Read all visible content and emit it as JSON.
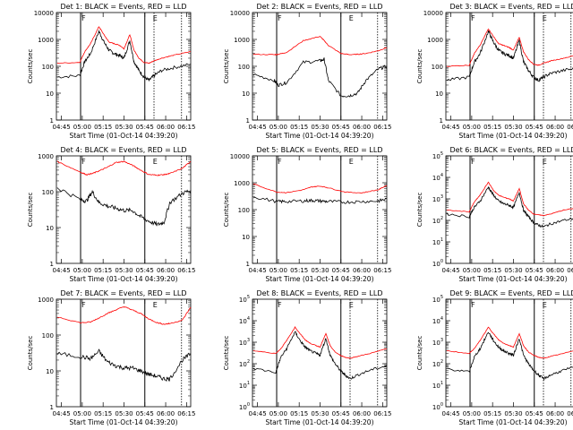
{
  "figure": {
    "xtick_labels": [
      "04:45",
      "05:00",
      "05:15",
      "05:30",
      "05:45",
      "06:00",
      "06:15"
    ],
    "xlabel": "Start Time (01-Oct-14 04:39:20)",
    "ylabel": "Counts/sec",
    "line_colors": {
      "events": "#000000",
      "lld": "#ff0000"
    }
  },
  "chart_data": [
    {
      "type": "line",
      "title": "Det 1: BLACK = Events, RED = LLD",
      "scale": "log",
      "ytick_labels": [
        "1",
        "10",
        "100",
        "1000",
        "10000"
      ],
      "ylim": [
        1,
        10000
      ],
      "markers": {
        "solid": [
          4.98,
          5.75
        ],
        "dotted": [
          5.86,
          6.19
        ],
        "letters": [
          "F",
          "E"
        ]
      },
      "x": [
        4.7,
        4.97,
        5.03,
        5.1,
        5.2,
        5.26,
        5.32,
        5.38,
        5.45,
        5.5,
        5.57,
        5.62,
        5.68,
        5.74,
        5.8,
        5.86,
        5.95,
        6.1,
        6.3
      ],
      "series": [
        {
          "name": "Events",
          "values": [
            40,
            45,
            150,
            300,
            2000,
            800,
            400,
            300,
            250,
            200,
            900,
            150,
            70,
            40,
            30,
            45,
            70,
            90,
            120
          ]
        },
        {
          "name": "LLD",
          "values": [
            130,
            140,
            350,
            700,
            3000,
            1500,
            800,
            700,
            600,
            450,
            1500,
            400,
            200,
            140,
            130,
            160,
            200,
            260,
            350
          ]
        }
      ]
    },
    {
      "type": "line",
      "title": "Det 2: BLACK = Events, RED = LLD",
      "scale": "log",
      "ytick_labels": [
        "1",
        "10",
        "100",
        "1000",
        "10000"
      ],
      "ylim": [
        1,
        10000
      ],
      "markers": {
        "solid": [
          4.98,
          5.75
        ],
        "dotted": [
          6.19
        ],
        "letters": [
          "F",
          "E"
        ]
      },
      "x": [
        4.7,
        4.95,
        5.0,
        5.1,
        5.3,
        5.5,
        5.55,
        5.6,
        5.75,
        5.85,
        5.95,
        6.05,
        6.2,
        6.3
      ],
      "series": [
        {
          "name": "Events",
          "values": [
            50,
            30,
            20,
            25,
            140,
            160,
            180,
            30,
            8,
            8,
            10,
            30,
            80,
            100
          ]
        },
        {
          "name": "LLD",
          "values": [
            280,
            270,
            280,
            330,
            900,
            1300,
            900,
            600,
            300,
            270,
            280,
            300,
            380,
            500
          ]
        }
      ]
    },
    {
      "type": "line",
      "title": "Det 3: BLACK = Events, RED = LLD",
      "scale": "log",
      "ytick_labels": [
        "1",
        "10",
        "100",
        "1000",
        "10000"
      ],
      "ylim": [
        1,
        10000
      ],
      "markers": {
        "solid": [
          4.98,
          5.75
        ],
        "dotted": [
          5.86,
          6.19
        ],
        "letters": [
          "F",
          "E"
        ]
      },
      "x": [
        4.7,
        4.97,
        5.03,
        5.1,
        5.2,
        5.26,
        5.32,
        5.38,
        5.45,
        5.5,
        5.57,
        5.62,
        5.68,
        5.74,
        5.8,
        5.86,
        5.95,
        6.1,
        6.3
      ],
      "series": [
        {
          "name": "Events",
          "values": [
            30,
            40,
            140,
            300,
            2000,
            800,
            400,
            300,
            250,
            200,
            900,
            150,
            70,
            40,
            30,
            40,
            55,
            70,
            90
          ]
        },
        {
          "name": "LLD",
          "values": [
            100,
            110,
            300,
            600,
            2500,
            1300,
            700,
            600,
            500,
            400,
            1200,
            350,
            180,
            120,
            110,
            130,
            160,
            200,
            280
          ]
        }
      ]
    },
    {
      "type": "line",
      "title": "Det 4: BLACK = Events, RED = LLD",
      "scale": "log",
      "ytick_labels": [
        "1",
        "10",
        "100",
        "1000"
      ],
      "ylim": [
        1,
        1000
      ],
      "markers": {
        "solid": [
          4.98,
          5.75
        ],
        "dotted": [
          6.19
        ],
        "letters": [
          "F",
          "E"
        ]
      },
      "x": [
        4.7,
        4.98,
        5.05,
        5.12,
        5.2,
        5.3,
        5.4,
        5.5,
        5.6,
        5.7,
        5.8,
        5.9,
        5.98,
        6.05,
        6.2,
        6.3
      ],
      "series": [
        {
          "name": "Events",
          "values": [
            130,
            60,
            55,
            100,
            50,
            40,
            35,
            30,
            30,
            20,
            15,
            12,
            14,
            50,
            90,
            110
          ]
        },
        {
          "name": "LLD",
          "values": [
            700,
            350,
            300,
            320,
            380,
            480,
            650,
            700,
            550,
            400,
            300,
            290,
            300,
            320,
            450,
            700
          ]
        }
      ]
    },
    {
      "type": "line",
      "title": "Det 5: BLACK = Events, RED = LLD",
      "scale": "log",
      "ytick_labels": [
        "1",
        "10",
        "100",
        "1000",
        "10000"
      ],
      "ylim": [
        1,
        10000
      ],
      "markers": {
        "solid": [
          4.98,
          5.75
        ],
        "dotted": [
          6.19
        ],
        "letters": [
          "F",
          "E"
        ]
      },
      "x": [
        4.7,
        4.98,
        5.1,
        5.3,
        5.4,
        5.5,
        5.6,
        5.8,
        6.0,
        6.2,
        6.3
      ],
      "series": [
        {
          "name": "Events",
          "values": [
            300,
            200,
            200,
            210,
            220,
            210,
            200,
            190,
            200,
            210,
            250
          ]
        },
        {
          "name": "LLD",
          "values": [
            900,
            450,
            430,
            550,
            700,
            750,
            650,
            450,
            420,
            550,
            800
          ]
        }
      ]
    },
    {
      "type": "line",
      "title": "Det 6: BLACK = Events, RED = LLD",
      "scale": "log",
      "ytick_labels": [
        "10^0",
        "10^1",
        "10^2",
        "10^3",
        "10^4",
        "10^5"
      ],
      "ylim": [
        1,
        100000
      ],
      "markers": {
        "solid": [
          4.98,
          5.75
        ],
        "dotted": [
          5.86,
          6.19
        ],
        "letters": [
          "F",
          "E"
        ]
      },
      "x": [
        4.7,
        4.97,
        5.03,
        5.1,
        5.2,
        5.26,
        5.32,
        5.38,
        5.45,
        5.5,
        5.57,
        5.62,
        5.68,
        5.74,
        5.8,
        5.86,
        5.95,
        6.1,
        6.3
      ],
      "series": [
        {
          "name": "Events",
          "values": [
            200,
            150,
            400,
            800,
            3500,
            1500,
            800,
            600,
            500,
            400,
            2000,
            300,
            150,
            80,
            60,
            50,
            70,
            100,
            140
          ]
        },
        {
          "name": "LLD",
          "values": [
            300,
            250,
            700,
            1500,
            6000,
            2500,
            1500,
            1200,
            1000,
            800,
            3000,
            600,
            300,
            200,
            180,
            170,
            200,
            300,
            400
          ]
        }
      ]
    },
    {
      "type": "line",
      "title": "Det 7: BLACK = Events, RED = LLD",
      "scale": "log",
      "ytick_labels": [
        "1",
        "10",
        "100",
        "1000"
      ],
      "ylim": [
        1,
        1000
      ],
      "markers": {
        "solid": [
          4.98,
          5.75
        ],
        "dotted": [
          6.19
        ],
        "letters": [
          "F",
          "E"
        ]
      },
      "x": [
        4.7,
        4.98,
        5.1,
        5.2,
        5.3,
        5.4,
        5.5,
        5.6,
        5.7,
        5.8,
        5.9,
        5.98,
        6.05,
        6.2,
        6.3
      ],
      "series": [
        {
          "name": "Events",
          "values": [
            30,
            25,
            22,
            35,
            18,
            14,
            12,
            12,
            10,
            8,
            7,
            6,
            6,
            20,
            30
          ]
        },
        {
          "name": "LLD",
          "values": [
            320,
            220,
            230,
            300,
            400,
            500,
            620,
            500,
            400,
            280,
            220,
            200,
            210,
            260,
            600
          ]
        }
      ]
    },
    {
      "type": "line",
      "title": "Det 8: BLACK = Events, RED = LLD",
      "scale": "log",
      "ytick_labels": [
        "10^0",
        "10^1",
        "10^2",
        "10^3",
        "10^4",
        "10^5"
      ],
      "ylim": [
        1,
        100000
      ],
      "markers": {
        "solid": [
          4.98,
          5.75
        ],
        "dotted": [
          5.86,
          6.19
        ],
        "letters": [
          "F",
          "E"
        ]
      },
      "x": [
        4.7,
        4.97,
        5.03,
        5.1,
        5.2,
        5.26,
        5.32,
        5.38,
        5.45,
        5.5,
        5.57,
        5.62,
        5.68,
        5.74,
        5.8,
        5.86,
        5.95,
        6.1,
        6.3
      ],
      "series": [
        {
          "name": "Events",
          "values": [
            60,
            40,
            200,
            500,
            3000,
            1200,
            600,
            400,
            300,
            250,
            1500,
            250,
            100,
            50,
            30,
            20,
            30,
            50,
            80
          ]
        },
        {
          "name": "LLD",
          "values": [
            400,
            300,
            500,
            1200,
            5000,
            2500,
            1300,
            900,
            700,
            600,
            2500,
            700,
            350,
            250,
            200,
            180,
            220,
            300,
            500
          ]
        }
      ]
    },
    {
      "type": "line",
      "title": "Det 9: BLACK = Events, RED = LLD",
      "scale": "log",
      "ytick_labels": [
        "10^0",
        "10^1",
        "10^2",
        "10^3",
        "10^4",
        "10^5"
      ],
      "ylim": [
        1,
        100000
      ],
      "markers": {
        "solid": [
          4.98,
          5.75
        ],
        "dotted": [
          5.86,
          6.19
        ],
        "letters": [
          "F",
          "E"
        ]
      },
      "x": [
        4.7,
        4.97,
        5.03,
        5.1,
        5.2,
        5.26,
        5.32,
        5.38,
        5.45,
        5.5,
        5.57,
        5.62,
        5.68,
        5.74,
        5.8,
        5.86,
        5.95,
        6.1,
        6.3
      ],
      "series": [
        {
          "name": "Events",
          "values": [
            60,
            40,
            200,
            500,
            3000,
            1200,
            600,
            400,
            300,
            250,
            1500,
            250,
            100,
            50,
            30,
            20,
            30,
            50,
            80
          ]
        },
        {
          "name": "LLD",
          "values": [
            400,
            300,
            500,
            1200,
            5000,
            2500,
            1300,
            900,
            700,
            600,
            2500,
            700,
            350,
            250,
            200,
            180,
            220,
            300,
            500
          ]
        }
      ]
    }
  ]
}
